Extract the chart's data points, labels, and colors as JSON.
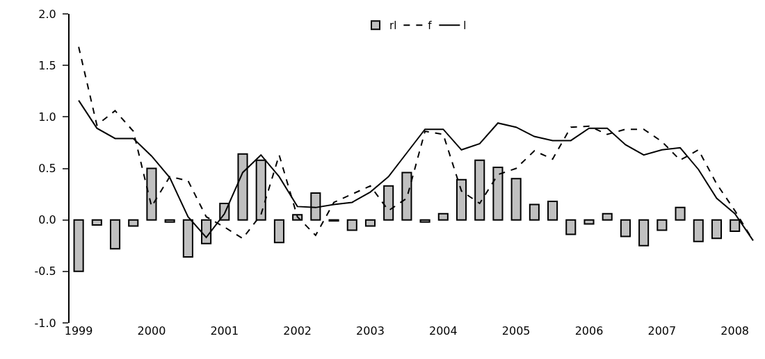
{
  "chart_data": {
    "type": "bar",
    "categories": [
      "1999",
      null,
      null,
      null,
      "2000",
      null,
      null,
      null,
      "2001",
      null,
      null,
      null,
      "2002",
      null,
      null,
      null,
      "2003",
      null,
      null,
      null,
      "2004",
      null,
      null,
      null,
      "2005",
      null,
      null,
      null,
      "2006",
      null,
      null,
      null,
      "2007",
      null,
      null,
      null,
      "2008",
      null
    ],
    "series": [
      {
        "name": "rl",
        "color": "#c0c0c0",
        "values": [
          -0.5,
          -0.05,
          -0.28,
          -0.06,
          0.5,
          -0.02,
          -0.36,
          -0.23,
          0.16,
          0.64,
          0.58,
          -0.22,
          0.05,
          0.26,
          -0.01,
          -0.1,
          -0.06,
          0.33,
          0.46,
          -0.02,
          0.06,
          0.39,
          0.58,
          0.51,
          0.4,
          0.15,
          0.18,
          -0.14,
          -0.04,
          0.06,
          -0.16,
          -0.25,
          -0.1,
          0.12,
          -0.21,
          -0.18,
          -0.11,
          null
        ]
      },
      {
        "name": "f",
        "type": "line",
        "line_style": "dashed",
        "color": "#000000",
        "values": [
          1.68,
          0.92,
          1.06,
          0.86,
          0.13,
          0.42,
          0.38,
          0.03,
          -0.07,
          -0.18,
          0.05,
          0.63,
          0.03,
          -0.15,
          0.17,
          0.25,
          0.33,
          0.09,
          0.21,
          0.86,
          0.83,
          0.28,
          0.16,
          0.44,
          0.5,
          0.67,
          0.59,
          0.9,
          0.91,
          0.83,
          0.88,
          0.88,
          0.76,
          0.58,
          0.68,
          0.35,
          0.09,
          -0.2
        ]
      },
      {
        "name": "l",
        "type": "line",
        "line_style": "solid",
        "color": "#000000",
        "values": [
          1.16,
          0.89,
          0.79,
          0.79,
          0.62,
          0.41,
          0.03,
          -0.17,
          0.06,
          0.46,
          0.63,
          0.42,
          0.13,
          0.12,
          0.15,
          0.17,
          0.27,
          0.42,
          0.65,
          0.88,
          0.88,
          0.68,
          0.74,
          0.94,
          0.9,
          0.81,
          0.77,
          0.77,
          0.89,
          0.89,
          0.73,
          0.63,
          0.68,
          0.7,
          0.49,
          0.21,
          0.06,
          -0.2
        ]
      }
    ],
    "ylim": [
      -1,
      2
    ],
    "yticks": [
      {
        "value": -1,
        "label": "-1.0"
      },
      {
        "value": -0.5,
        "label": "-0.5"
      },
      {
        "value": 0,
        "label": "0.0"
      },
      {
        "value": 0.5,
        "label": "0.5"
      },
      {
        "value": 1,
        "label": "1.0"
      },
      {
        "value": 1.5,
        "label": "1.5"
      },
      {
        "value": 2,
        "label": "2.0"
      }
    ],
    "legend": "top",
    "grid": false,
    "marker": "none"
  }
}
